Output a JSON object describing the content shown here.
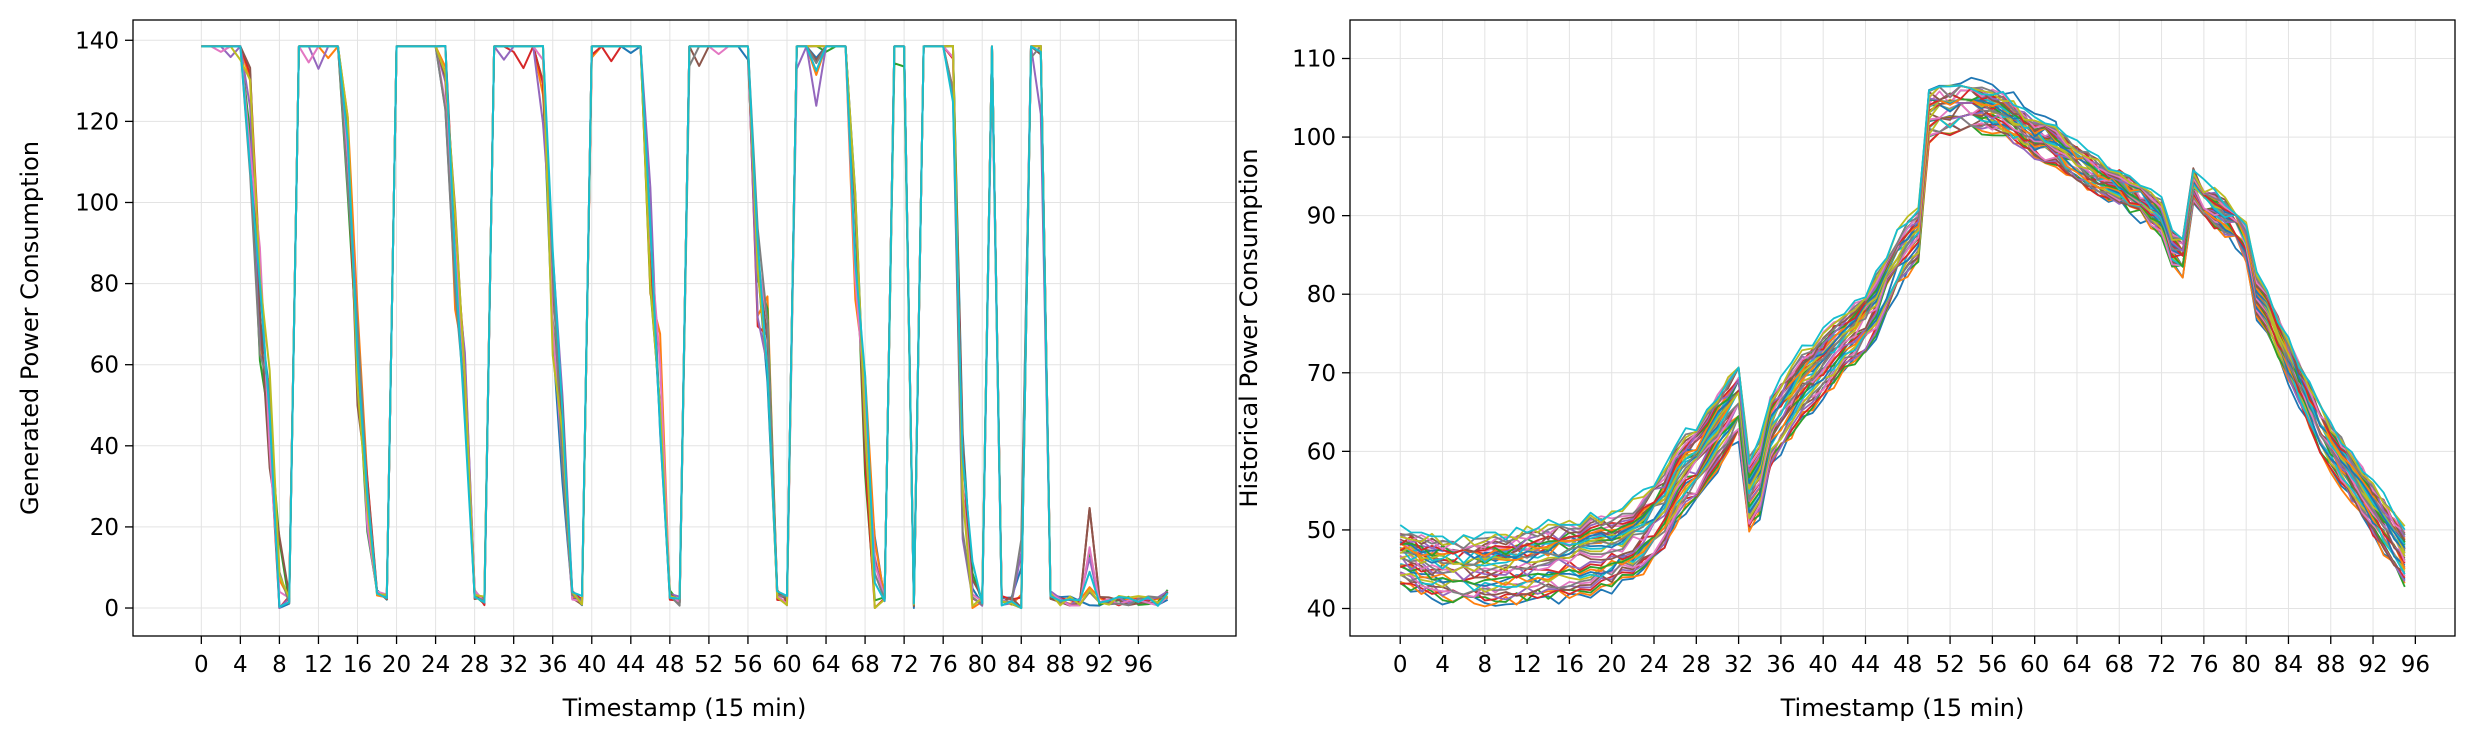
{
  "chart_data": [
    {
      "type": "line",
      "title": "",
      "xlabel": "Timestamp (15 min)",
      "ylabel": "Generated Power Consumption",
      "xlim": [
        -7,
        106
      ],
      "ylim": [
        -6.9,
        145
      ],
      "xticks": [
        0,
        4,
        8,
        12,
        16,
        20,
        24,
        28,
        32,
        36,
        40,
        44,
        48,
        52,
        56,
        60,
        64,
        68,
        72,
        76,
        80,
        84,
        88,
        92,
        96
      ],
      "yticks": [
        0,
        20,
        40,
        60,
        80,
        100,
        120,
        140
      ],
      "grid": true,
      "series_count": 10,
      "colors": [
        "#1f77b4",
        "#ff7f0e",
        "#2ca02c",
        "#d62728",
        "#9467bd",
        "#8c564b",
        "#e377c2",
        "#7f7f7f",
        "#bcbd22",
        "#17becf"
      ],
      "x": [
        0,
        1,
        2,
        3,
        4,
        5,
        6,
        7,
        8,
        9,
        10,
        11,
        12,
        13,
        14,
        15,
        16,
        17,
        18,
        19,
        20,
        21,
        22,
        23,
        24,
        25,
        26,
        27,
        28,
        29,
        30,
        31,
        32,
        33,
        34,
        35,
        36,
        37,
        38,
        39,
        40,
        41,
        42,
        43,
        44,
        45,
        46,
        47,
        48,
        49,
        50,
        51,
        52,
        53,
        54,
        55,
        56,
        57,
        58,
        59,
        60,
        61,
        62,
        63,
        64,
        65,
        66,
        67,
        68,
        69,
        70,
        71,
        72,
        73,
        74,
        75,
        76,
        77,
        78,
        79,
        80,
        81,
        82,
        83,
        84,
        85,
        86,
        87,
        88,
        89,
        90,
        91,
        92,
        93,
        94,
        95,
        96,
        97,
        98,
        99
      ],
      "base_values": [
        138.5,
        138.5,
        138.5,
        138.5,
        138,
        120,
        75,
        45,
        5,
        1,
        138.5,
        138.5,
        138.5,
        138.5,
        138.5,
        115,
        60,
        20,
        2,
        1,
        138.5,
        138.5,
        138.5,
        138.5,
        138.5,
        135,
        85,
        50,
        2,
        0.5,
        138.5,
        138.5,
        138.5,
        138.5,
        138.5,
        133,
        75,
        40,
        2,
        0.5,
        138.5,
        138.5,
        138.5,
        138.5,
        138.5,
        138.5,
        90,
        55,
        2,
        0.5,
        138.5,
        138.5,
        138.5,
        138.5,
        138.5,
        138.5,
        138.5,
        80,
        65,
        2,
        0.5,
        138.5,
        138.5,
        135,
        138.5,
        138.5,
        138.5,
        90,
        45,
        5,
        0.5,
        138.5,
        138.5,
        0,
        138.5,
        138.5,
        138.5,
        136,
        30,
        5,
        0.5,
        138.5,
        0.5,
        0.5,
        5,
        138.5,
        135,
        2,
        0.5,
        0.5,
        0.5,
        12,
        0.5,
        0.5,
        0.5,
        0.5,
        0.5,
        0.5,
        0.5,
        2
      ],
      "note_series": "10 overlapping generated series varying slightly around base_values"
    },
    {
      "type": "line",
      "title": "",
      "xlabel": "Timestamp (15 min)",
      "ylabel": "Historical Power Consumption",
      "xlim": [
        -4.75,
        99.75
      ],
      "ylim": [
        36.5,
        114.9
      ],
      "xticks": [
        0,
        4,
        8,
        12,
        16,
        20,
        24,
        28,
        32,
        36,
        40,
        44,
        48,
        52,
        56,
        60,
        64,
        68,
        72,
        76,
        80,
        84,
        88,
        92,
        96
      ],
      "yticks": [
        40,
        50,
        60,
        70,
        80,
        90,
        100,
        110
      ],
      "grid": true,
      "series_count": 40,
      "colors": [
        "#1f77b4",
        "#ff7f0e",
        "#2ca02c",
        "#d62728",
        "#9467bd",
        "#8c564b",
        "#e377c2",
        "#7f7f7f",
        "#bcbd22",
        "#17becf"
      ],
      "x": [
        0,
        1,
        2,
        3,
        4,
        5,
        6,
        7,
        8,
        9,
        10,
        11,
        12,
        13,
        14,
        15,
        16,
        17,
        18,
        19,
        20,
        21,
        22,
        23,
        24,
        25,
        26,
        27,
        28,
        29,
        30,
        31,
        32,
        33,
        34,
        35,
        36,
        37,
        38,
        39,
        40,
        41,
        42,
        43,
        44,
        45,
        46,
        47,
        48,
        49,
        50,
        51,
        52,
        53,
        54,
        55,
        56,
        57,
        58,
        59,
        60,
        61,
        62,
        63,
        64,
        65,
        66,
        67,
        68,
        69,
        70,
        71,
        72,
        73,
        74,
        75,
        76,
        77,
        78,
        79,
        80,
        81,
        82,
        83,
        84,
        85,
        86,
        87,
        88,
        89,
        90,
        91,
        92,
        93,
        94,
        95
      ],
      "mean_values": [
        47,
        46.5,
        46,
        45.7,
        45.5,
        45.4,
        45.3,
        45.3,
        45.4,
        45.5,
        45.6,
        45.8,
        46,
        46.2,
        46.4,
        46.6,
        46.8,
        47,
        47.2,
        47.5,
        47.8,
        48.5,
        49,
        50,
        51.5,
        53,
        56,
        58,
        59,
        61,
        63,
        65,
        67,
        55,
        57,
        63,
        65,
        67,
        69,
        70,
        71.5,
        73,
        74,
        75.5,
        77,
        79,
        82,
        84.5,
        86.5,
        88,
        103,
        103.5,
        103.5,
        104,
        104,
        103.8,
        103.5,
        103,
        102,
        101,
        100,
        99.5,
        99,
        98,
        97,
        96,
        95,
        94.5,
        94,
        93,
        92,
        91,
        90,
        86,
        85,
        94,
        92,
        91,
        90,
        89,
        87,
        80,
        78,
        75,
        72,
        69,
        66,
        63,
        61,
        59,
        57,
        55,
        53,
        51,
        49,
        47
      ],
      "note_series": "40 historical daily series varying around mean_values (about 40 to 111)"
    }
  ]
}
